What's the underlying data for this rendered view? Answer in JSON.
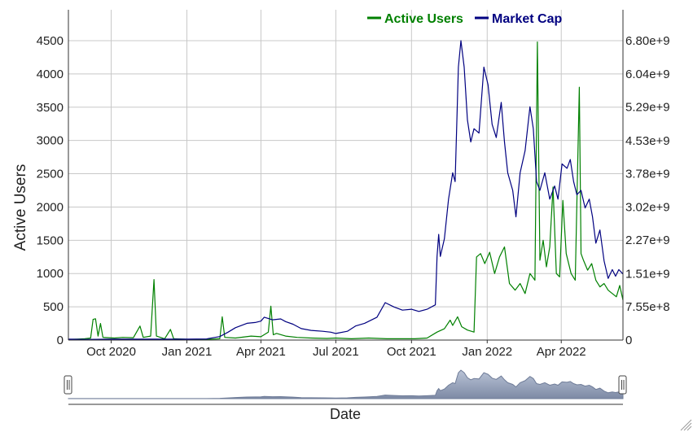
{
  "chart_data": {
    "type": "line",
    "xlabel": "",
    "ylabel": "Active Users",
    "y2label": "",
    "navigator_label": "Date",
    "x_range": [
      "2020-08-10",
      "2022-06-15"
    ],
    "x_ticks": [
      {
        "date": "2020-10-01",
        "label": "Oct 2020"
      },
      {
        "date": "2021-01-01",
        "label": "Jan 2021"
      },
      {
        "date": "2021-04-01",
        "label": "Apr 2021"
      },
      {
        "date": "2021-07-01",
        "label": "Jul 2021"
      },
      {
        "date": "2021-10-01",
        "label": "Oct 2021"
      },
      {
        "date": "2022-01-01",
        "label": "Jan 2022"
      },
      {
        "date": "2022-04-01",
        "label": "Apr 2022"
      }
    ],
    "y_left": {
      "range": [
        0,
        4500
      ],
      "ticks": [
        0,
        500,
        1000,
        1500,
        2000,
        2500,
        3000,
        3500,
        4000,
        4500
      ]
    },
    "y_right": {
      "range": [
        0,
        6800000000
      ],
      "ticks": [
        {
          "value": 0,
          "label": "0"
        },
        {
          "value": 755000000,
          "label": "7.55e+8"
        },
        {
          "value": 1510000000,
          "label": "1.51e+9"
        },
        {
          "value": 2270000000,
          "label": "2.27e+9"
        },
        {
          "value": 3020000000,
          "label": "3.02e+9"
        },
        {
          "value": 3780000000,
          "label": "3.78e+9"
        },
        {
          "value": 4530000000,
          "label": "4.53e+9"
        },
        {
          "value": 5290000000,
          "label": "5.29e+9"
        },
        {
          "value": 6040000000,
          "label": "6.04e+9"
        },
        {
          "value": 6800000000,
          "label": "6.80e+9"
        }
      ]
    },
    "grid": true,
    "legend_position": "top-right",
    "series": [
      {
        "name": "Active Users",
        "axis": "left",
        "color": "#008000",
        "points": [
          [
            "2020-08-10",
            10
          ],
          [
            "2020-08-20",
            15
          ],
          [
            "2020-08-30",
            20
          ],
          [
            "2020-09-06",
            30
          ],
          [
            "2020-09-09",
            310
          ],
          [
            "2020-09-12",
            320
          ],
          [
            "2020-09-15",
            60
          ],
          [
            "2020-09-18",
            250
          ],
          [
            "2020-09-21",
            40
          ],
          [
            "2020-10-05",
            30
          ],
          [
            "2020-10-15",
            40
          ],
          [
            "2020-10-28",
            35
          ],
          [
            "2020-11-05",
            210
          ],
          [
            "2020-11-09",
            40
          ],
          [
            "2020-11-18",
            60
          ],
          [
            "2020-11-22",
            910
          ],
          [
            "2020-11-25",
            60
          ],
          [
            "2020-12-05",
            20
          ],
          [
            "2020-12-12",
            160
          ],
          [
            "2020-12-16",
            20
          ],
          [
            "2021-01-05",
            10
          ],
          [
            "2021-01-25",
            10
          ],
          [
            "2021-02-10",
            20
          ],
          [
            "2021-02-13",
            350
          ],
          [
            "2021-02-16",
            40
          ],
          [
            "2021-03-01",
            30
          ],
          [
            "2021-03-20",
            60
          ],
          [
            "2021-04-01",
            50
          ],
          [
            "2021-04-10",
            120
          ],
          [
            "2021-04-13",
            510
          ],
          [
            "2021-04-16",
            80
          ],
          [
            "2021-04-20",
            100
          ],
          [
            "2021-05-01",
            60
          ],
          [
            "2021-05-15",
            40
          ],
          [
            "2021-06-01",
            30
          ],
          [
            "2021-06-20",
            25
          ],
          [
            "2021-07-01",
            30
          ],
          [
            "2021-07-20",
            20
          ],
          [
            "2021-08-10",
            30
          ],
          [
            "2021-09-01",
            20
          ],
          [
            "2021-09-20",
            20
          ],
          [
            "2021-10-05",
            20
          ],
          [
            "2021-10-20",
            30
          ],
          [
            "2021-11-01",
            120
          ],
          [
            "2021-11-10",
            170
          ],
          [
            "2021-11-17",
            300
          ],
          [
            "2021-11-20",
            220
          ],
          [
            "2021-11-26",
            350
          ],
          [
            "2021-12-01",
            200
          ],
          [
            "2021-12-08",
            150
          ],
          [
            "2021-12-16",
            120
          ],
          [
            "2021-12-19",
            1250
          ],
          [
            "2021-12-24",
            1300
          ],
          [
            "2021-12-29",
            1150
          ],
          [
            "2022-01-04",
            1320
          ],
          [
            "2022-01-10",
            1000
          ],
          [
            "2022-01-16",
            1250
          ],
          [
            "2022-01-22",
            1400
          ],
          [
            "2022-01-28",
            850
          ],
          [
            "2022-02-04",
            750
          ],
          [
            "2022-02-10",
            850
          ],
          [
            "2022-02-16",
            700
          ],
          [
            "2022-02-22",
            1000
          ],
          [
            "2022-02-28",
            900
          ],
          [
            "2022-03-03",
            4480
          ],
          [
            "2022-03-06",
            1200
          ],
          [
            "2022-03-10",
            1500
          ],
          [
            "2022-03-14",
            1100
          ],
          [
            "2022-03-18",
            1400
          ],
          [
            "2022-03-22",
            2300
          ],
          [
            "2022-03-26",
            1000
          ],
          [
            "2022-03-30",
            950
          ],
          [
            "2022-04-03",
            2100
          ],
          [
            "2022-04-07",
            1300
          ],
          [
            "2022-04-13",
            1000
          ],
          [
            "2022-04-18",
            900
          ],
          [
            "2022-04-23",
            3800
          ],
          [
            "2022-04-25",
            1300
          ],
          [
            "2022-04-28",
            1200
          ],
          [
            "2022-05-03",
            1050
          ],
          [
            "2022-05-08",
            1150
          ],
          [
            "2022-05-13",
            900
          ],
          [
            "2022-05-18",
            800
          ],
          [
            "2022-05-23",
            850
          ],
          [
            "2022-05-28",
            750
          ],
          [
            "2022-06-02",
            700
          ],
          [
            "2022-06-07",
            650
          ],
          [
            "2022-06-11",
            820
          ],
          [
            "2022-06-15",
            600
          ]
        ]
      },
      {
        "name": "Market Cap",
        "axis": "right",
        "color": "#000080",
        "points": [
          [
            "2020-08-10",
            20000000
          ],
          [
            "2020-09-01",
            15000000
          ],
          [
            "2020-10-01",
            20000000
          ],
          [
            "2020-11-01",
            20000000
          ],
          [
            "2020-12-01",
            20000000
          ],
          [
            "2021-01-01",
            20000000
          ],
          [
            "2021-01-25",
            25000000
          ],
          [
            "2021-02-10",
            80000000
          ],
          [
            "2021-02-20",
            180000000
          ],
          [
            "2021-03-01",
            280000000
          ],
          [
            "2021-03-15",
            380000000
          ],
          [
            "2021-03-25",
            400000000
          ],
          [
            "2021-04-01",
            430000000
          ],
          [
            "2021-04-05",
            520000000
          ],
          [
            "2021-04-15",
            460000000
          ],
          [
            "2021-04-25",
            480000000
          ],
          [
            "2021-05-01",
            420000000
          ],
          [
            "2021-05-10",
            360000000
          ],
          [
            "2021-05-20",
            260000000
          ],
          [
            "2021-06-01",
            220000000
          ],
          [
            "2021-06-15",
            200000000
          ],
          [
            "2021-06-25",
            180000000
          ],
          [
            "2021-07-01",
            150000000
          ],
          [
            "2021-07-15",
            200000000
          ],
          [
            "2021-07-25",
            320000000
          ],
          [
            "2021-08-05",
            380000000
          ],
          [
            "2021-08-20",
            520000000
          ],
          [
            "2021-08-30",
            850000000
          ],
          [
            "2021-09-10",
            750000000
          ],
          [
            "2021-09-20",
            680000000
          ],
          [
            "2021-10-01",
            700000000
          ],
          [
            "2021-10-10",
            650000000
          ],
          [
            "2021-10-20",
            700000000
          ],
          [
            "2021-10-30",
            800000000
          ],
          [
            "2021-11-01",
            1900000000
          ],
          [
            "2021-11-03",
            2400000000
          ],
          [
            "2021-11-05",
            1900000000
          ],
          [
            "2021-11-10",
            2300000000
          ],
          [
            "2021-11-15",
            3200000000
          ],
          [
            "2021-11-20",
            3800000000
          ],
          [
            "2021-11-23",
            3600000000
          ],
          [
            "2021-11-27",
            6200000000
          ],
          [
            "2021-11-30",
            6800000000
          ],
          [
            "2021-12-04",
            6200000000
          ],
          [
            "2021-12-08",
            5000000000
          ],
          [
            "2021-12-12",
            4500000000
          ],
          [
            "2021-12-16",
            4800000000
          ],
          [
            "2021-12-22",
            4700000000
          ],
          [
            "2021-12-28",
            6200000000
          ],
          [
            "2022-01-02",
            5800000000
          ],
          [
            "2022-01-07",
            4900000000
          ],
          [
            "2022-01-12",
            4600000000
          ],
          [
            "2022-01-18",
            5400000000
          ],
          [
            "2022-01-22",
            4500000000
          ],
          [
            "2022-01-26",
            3800000000
          ],
          [
            "2022-02-01",
            3400000000
          ],
          [
            "2022-02-05",
            2800000000
          ],
          [
            "2022-02-10",
            3800000000
          ],
          [
            "2022-02-16",
            4300000000
          ],
          [
            "2022-02-22",
            5300000000
          ],
          [
            "2022-02-26",
            4800000000
          ],
          [
            "2022-03-02",
            3600000000
          ],
          [
            "2022-03-06",
            3400000000
          ],
          [
            "2022-03-12",
            3800000000
          ],
          [
            "2022-03-18",
            3200000000
          ],
          [
            "2022-03-24",
            3500000000
          ],
          [
            "2022-03-28",
            3200000000
          ],
          [
            "2022-04-02",
            4000000000
          ],
          [
            "2022-04-08",
            3900000000
          ],
          [
            "2022-04-12",
            4100000000
          ],
          [
            "2022-04-16",
            3600000000
          ],
          [
            "2022-04-20",
            3300000000
          ],
          [
            "2022-04-25",
            3400000000
          ],
          [
            "2022-04-30",
            3000000000
          ],
          [
            "2022-05-05",
            3200000000
          ],
          [
            "2022-05-09",
            2800000000
          ],
          [
            "2022-05-13",
            2200000000
          ],
          [
            "2022-05-18",
            2500000000
          ],
          [
            "2022-05-23",
            1800000000
          ],
          [
            "2022-05-28",
            1400000000
          ],
          [
            "2022-06-02",
            1600000000
          ],
          [
            "2022-06-06",
            1450000000
          ],
          [
            "2022-06-10",
            1600000000
          ],
          [
            "2022-06-15",
            1500000000
          ]
        ]
      }
    ]
  }
}
